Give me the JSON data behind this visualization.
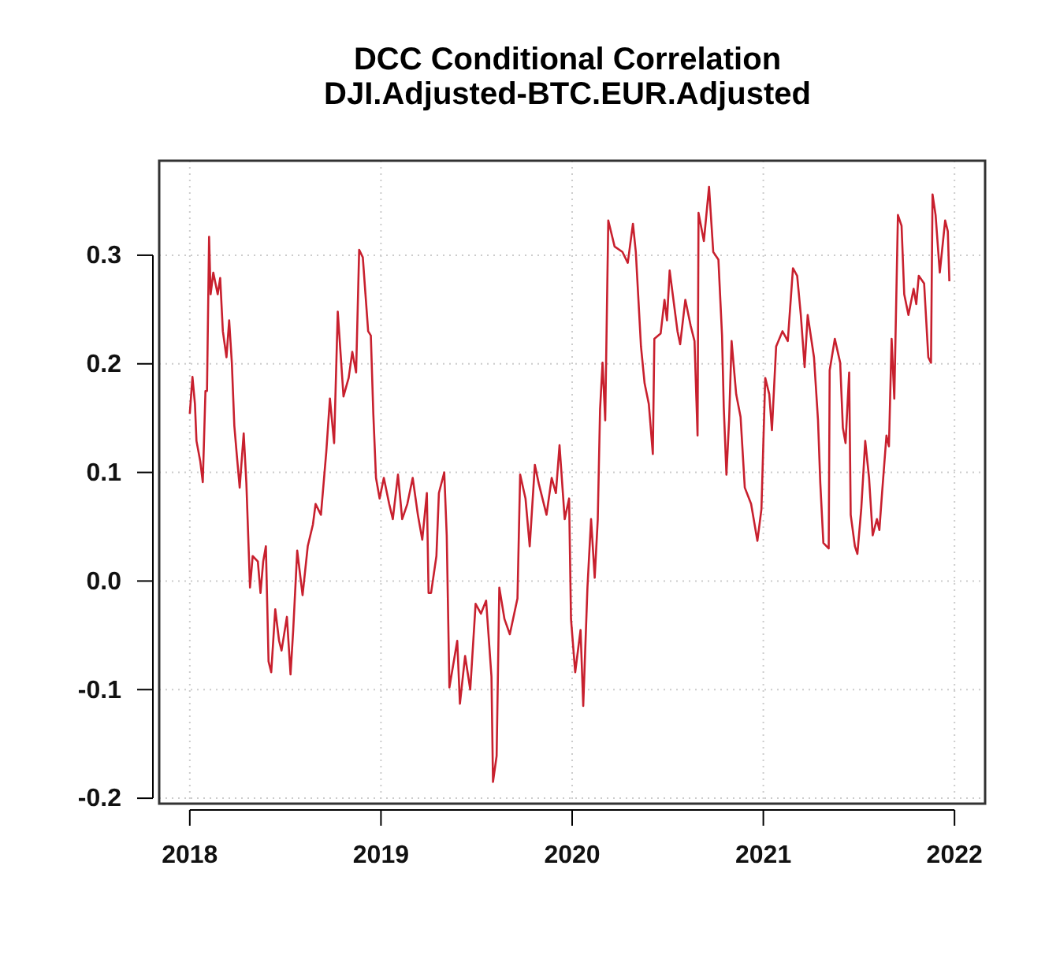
{
  "chart_data": {
    "type": "line",
    "title": "DCC Conditional Correlation",
    "subtitle": "DJI.Adjusted-BTC.EUR.Adjusted",
    "xlim": [
      2017.84,
      2022.16
    ],
    "xticks": [
      2018,
      2019,
      2020,
      2021,
      2022
    ],
    "ylim": [
      -0.205,
      0.387
    ],
    "yticks": [
      {
        "value": -0.2,
        "label": "-0.2"
      },
      {
        "value": -0.1,
        "label": "-0.1"
      },
      {
        "value": 0,
        "label": "0.0"
      },
      {
        "value": 0.1,
        "label": "0.1"
      },
      {
        "value": 0.2,
        "label": "0.2"
      },
      {
        "value": 0.3,
        "label": "0.3"
      }
    ],
    "grid": true,
    "line_style": "solid",
    "marker": "none",
    "series": [
      {
        "color": "#c8202e",
        "x": [
          2018.0,
          2018.014,
          2018.027,
          2018.035,
          2018.055,
          2018.068,
          2018.082,
          2018.09,
          2018.101,
          2018.109,
          2018.123,
          2018.146,
          2018.159,
          2018.173,
          2018.192,
          2018.206,
          2018.22,
          2018.233,
          2018.247,
          2018.261,
          2018.282,
          2018.296,
          2018.315,
          2018.329,
          2018.356,
          2018.37,
          2018.384,
          2018.398,
          2018.412,
          2018.426,
          2018.447,
          2018.467,
          2018.48,
          2018.508,
          2018.527,
          2018.541,
          2018.562,
          2018.59,
          2018.617,
          2018.644,
          2018.658,
          2018.686,
          2018.714,
          2018.733,
          2018.755,
          2018.774,
          2018.804,
          2018.831,
          2018.85,
          2018.87,
          2018.886,
          2018.905,
          2018.919,
          2018.933,
          2018.947,
          2018.96,
          2018.974,
          2018.993,
          2019.015,
          2019.043,
          2019.062,
          2019.089,
          2019.111,
          2019.138,
          2019.166,
          2019.193,
          2019.216,
          2019.24,
          2019.249,
          2019.262,
          2019.29,
          2019.303,
          2019.331,
          2019.344,
          2019.358,
          2019.399,
          2019.413,
          2019.44,
          2019.467,
          2019.495,
          2019.523,
          2019.55,
          2019.578,
          2019.586,
          2019.605,
          2019.619,
          2019.646,
          2019.674,
          2019.714,
          2019.728,
          2019.756,
          2019.778,
          2019.805,
          2019.825,
          2019.866,
          2019.893,
          2019.915,
          2019.934,
          2019.961,
          2019.984,
          2019.994,
          2020.016,
          2020.044,
          2020.058,
          2020.08,
          2020.099,
          2020.118,
          2020.134,
          2020.146,
          2020.159,
          2020.173,
          2020.189,
          2020.222,
          2020.263,
          2020.291,
          2020.318,
          2020.333,
          2020.36,
          2020.379,
          2020.401,
          2020.422,
          2020.43,
          2020.463,
          2020.483,
          2020.496,
          2020.51,
          2020.551,
          2020.565,
          2020.592,
          2020.62,
          2020.64,
          2020.656,
          2020.661,
          2020.689,
          2020.716,
          2020.738,
          2020.765,
          2020.784,
          2020.793,
          2020.807,
          2020.821,
          2020.834,
          2020.858,
          2020.881,
          2020.903,
          2020.936,
          2020.969,
          2020.99,
          2021.01,
          2021.031,
          2021.045,
          2021.067,
          2021.1,
          2021.128,
          2021.155,
          2021.177,
          2021.196,
          2021.216,
          2021.232,
          2021.265,
          2021.286,
          2021.298,
          2021.314,
          2021.342,
          2021.347,
          2021.374,
          2021.402,
          2021.416,
          2021.43,
          2021.449,
          2021.457,
          2021.479,
          2021.492,
          2021.512,
          2021.533,
          2021.553,
          2021.572,
          2021.594,
          2021.607,
          2021.621,
          2021.644,
          2021.657,
          2021.671,
          2021.685,
          2021.704,
          2021.723,
          2021.737,
          2021.759,
          2021.786,
          2021.8,
          2021.813,
          2021.841,
          2021.863,
          2021.877,
          2021.885,
          2021.901,
          2021.923,
          2021.951,
          2021.965,
          2021.973
        ],
        "values": [
          0.154,
          0.188,
          0.163,
          0.129,
          0.11,
          0.091,
          0.175,
          0.175,
          0.317,
          0.264,
          0.284,
          0.264,
          0.279,
          0.23,
          0.206,
          0.24,
          0.201,
          0.143,
          0.114,
          0.086,
          0.136,
          0.09,
          -0.006,
          0.023,
          0.018,
          -0.011,
          0.018,
          0.032,
          -0.074,
          -0.084,
          -0.026,
          -0.055,
          -0.064,
          -0.033,
          -0.086,
          -0.045,
          0.028,
          -0.013,
          0.032,
          0.052,
          0.071,
          0.061,
          0.119,
          0.168,
          0.127,
          0.248,
          0.17,
          0.187,
          0.211,
          0.192,
          0.305,
          0.298,
          0.264,
          0.23,
          0.226,
          0.154,
          0.095,
          0.076,
          0.095,
          0.071,
          0.057,
          0.098,
          0.057,
          0.071,
          0.095,
          0.061,
          0.038,
          0.081,
          -0.011,
          -0.011,
          0.023,
          0.081,
          0.1,
          0.042,
          -0.098,
          -0.055,
          -0.113,
          -0.069,
          -0.1,
          -0.021,
          -0.03,
          -0.018,
          -0.088,
          -0.185,
          -0.161,
          -0.006,
          -0.035,
          -0.049,
          -0.016,
          0.098,
          0.076,
          0.032,
          0.107,
          0.09,
          0.061,
          0.095,
          0.081,
          0.125,
          0.057,
          0.076,
          -0.035,
          -0.084,
          -0.045,
          -0.115,
          -0.006,
          0.057,
          0.003,
          0.057,
          0.158,
          0.201,
          0.148,
          0.332,
          0.308,
          0.303,
          0.293,
          0.329,
          0.303,
          0.216,
          0.182,
          0.163,
          0.117,
          0.223,
          0.228,
          0.259,
          0.24,
          0.286,
          0.23,
          0.218,
          0.259,
          0.235,
          0.221,
          0.134,
          0.339,
          0.313,
          0.363,
          0.303,
          0.296,
          0.226,
          0.16,
          0.098,
          0.148,
          0.221,
          0.172,
          0.151,
          0.086,
          0.071,
          0.037,
          0.066,
          0.187,
          0.172,
          0.139,
          0.216,
          0.23,
          0.221,
          0.288,
          0.281,
          0.245,
          0.197,
          0.245,
          0.206,
          0.148,
          0.09,
          0.035,
          0.03,
          0.194,
          0.223,
          0.201,
          0.141,
          0.127,
          0.192,
          0.061,
          0.032,
          0.025,
          0.066,
          0.129,
          0.095,
          0.042,
          0.057,
          0.047,
          0.081,
          0.134,
          0.124,
          0.223,
          0.168,
          0.337,
          0.327,
          0.264,
          0.245,
          0.269,
          0.255,
          0.281,
          0.274,
          0.206,
          0.201,
          0.356,
          0.337,
          0.284,
          0.332,
          0.322,
          0.276
        ]
      }
    ]
  }
}
